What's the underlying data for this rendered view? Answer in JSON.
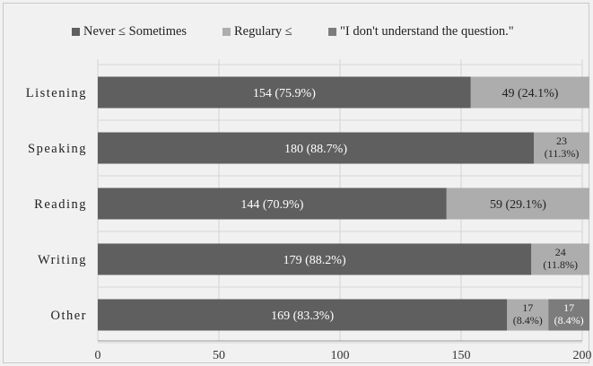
{
  "chart_data": {
    "type": "bar",
    "orientation": "horizontal",
    "stacked": true,
    "categories": [
      "Listening",
      "Speaking",
      "Reading",
      "Writing",
      "Other"
    ],
    "series": [
      {
        "name": "Never ≤ Sometimes",
        "color": "#5f5f5f",
        "values": [
          154,
          180,
          144,
          179,
          169
        ],
        "labels": [
          "154 (75.9%)",
          "180 (88.7%)",
          "144 (70.9%)",
          "179 (88.2%)",
          "169 (83.3%)"
        ]
      },
      {
        "name": "Regulary ≤",
        "color": "#adadad",
        "values": [
          49,
          23,
          59,
          24,
          17
        ],
        "labels": [
          "49 (24.1%)",
          "23\n(11.3%)",
          "59 (29.1%)",
          "24\n(11.8%)",
          "17\n(8.4%)"
        ]
      },
      {
        "name": "\"I don't understand the question.\"",
        "color": "#7c7c7c",
        "values": [
          0,
          0,
          0,
          0,
          17
        ],
        "labels": [
          "",
          "",
          "",
          "",
          "17\n(8.4%)"
        ]
      }
    ],
    "x_ticks": [
      0,
      50,
      100,
      150,
      200
    ],
    "xlim": [
      0,
      200
    ],
    "grid": "vertical",
    "legend_position": "top"
  }
}
